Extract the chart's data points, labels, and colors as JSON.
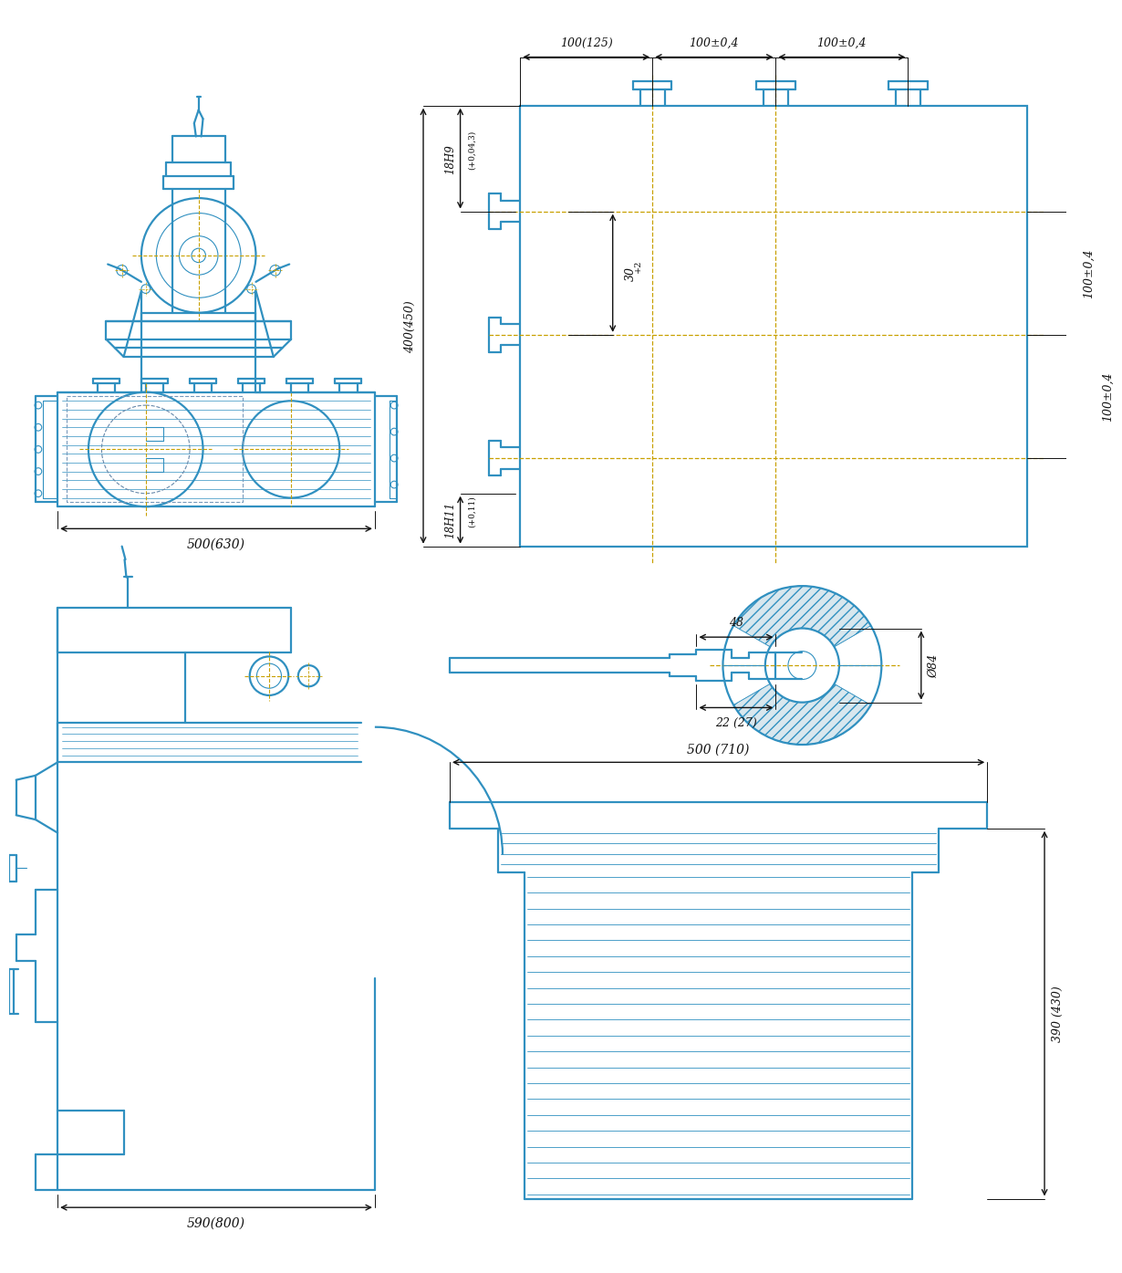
{
  "bg_color": "#ffffff",
  "bc": "#3090c0",
  "oc": "#c8a000",
  "dc": "#111111",
  "dims": {
    "top_view_width_label": "500(630)",
    "side_view_width_label": "590(800)",
    "top_right_h_label": "400(450)",
    "top_right_18H9": "18H9",
    "top_right_18H9_tol": "(+0,04,3)",
    "top_right_18H11": "18H11",
    "top_right_18H11_tol": "(+0,11)",
    "top_right_30": "30",
    "top_right_30_tol": "+2",
    "top_right_100_125": "100(125)",
    "top_right_100_04_1": "100±0,4",
    "top_right_100_04_2": "100±0,4",
    "top_right_100_04_side1": "100±0,4",
    "top_right_100_04_side2": "100±0,4",
    "handwheel_48": "48",
    "handwheel_84": "Ø84",
    "handwheel_22_27": "22 (27)",
    "table_500_710": "500 (710)",
    "table_390_430": "390 (430)"
  }
}
